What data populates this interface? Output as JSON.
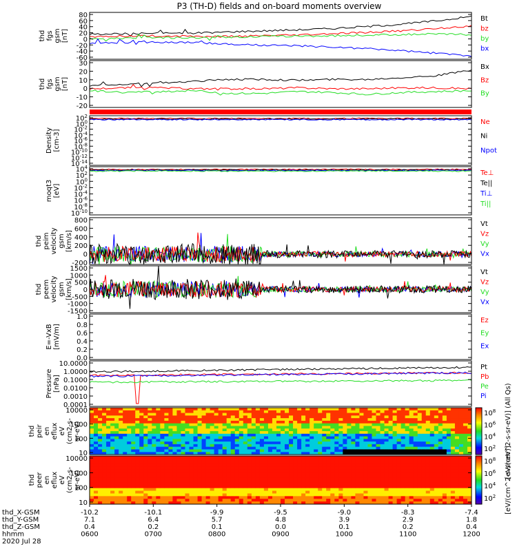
{
  "title": "P3 (TH-D) fields and on-board moments overview",
  "colors": {
    "black": "#000000",
    "red": "#ff0000",
    "green": "#22dd22",
    "blue": "#0000ff"
  },
  "chart_data": [
    {
      "type": "line",
      "ylabel": [
        "thd",
        "fgs",
        "gsm",
        "[nT]"
      ],
      "yticks": [
        "80",
        "60",
        "40",
        "20",
        "0",
        "-20",
        "-40",
        "-60"
      ],
      "ylim": [
        -60,
        80
      ],
      "legend": [
        {
          "label": "Bt",
          "color": "#000000"
        },
        {
          "label": "bz",
          "color": "#ff0000"
        },
        {
          "label": "by",
          "color": "#22dd22"
        },
        {
          "label": "bx",
          "color": "#0000ff"
        }
      ],
      "series": [
        {
          "name": "Bt",
          "color": "#000000",
          "values": [
            15,
            16,
            18,
            18,
            22,
            25,
            28,
            32,
            38,
            45,
            55,
            68
          ]
        },
        {
          "name": "bz",
          "color": "#ff0000",
          "values": [
            8,
            9,
            10,
            8,
            8,
            10,
            12,
            16,
            20,
            25,
            32,
            40
          ]
        },
        {
          "name": "by",
          "color": "#22dd22",
          "values": [
            2,
            3,
            4,
            5,
            6,
            8,
            9,
            10,
            12,
            14,
            15,
            14
          ]
        },
        {
          "name": "bx",
          "color": "#0000ff",
          "values": [
            -12,
            -10,
            -9,
            -10,
            -15,
            -18,
            -20,
            -24,
            -28,
            -35,
            -42,
            -50
          ]
        }
      ]
    },
    {
      "type": "line",
      "ylabel": [
        "thd",
        "fgs",
        "gsm",
        "[nT]"
      ],
      "yticks": [
        "30",
        "20",
        "10",
        "0",
        "-10",
        "-20"
      ],
      "ylim": [
        -20,
        30
      ],
      "legend": [
        {
          "label": "Bx",
          "color": "#000000"
        },
        {
          "label": "Bz",
          "color": "#ff0000"
        },
        {
          "label": "By",
          "color": "#22dd22"
        }
      ],
      "series": [
        {
          "name": "Bx",
          "color": "#000000",
          "values": [
            4,
            5,
            6,
            8,
            10,
            10,
            9,
            10,
            10,
            12,
            14,
            20
          ]
        },
        {
          "name": "Bz",
          "color": "#ff0000",
          "values": [
            0,
            1,
            1,
            0,
            0,
            0,
            1,
            0,
            0,
            1,
            1,
            0
          ]
        },
        {
          "name": "By",
          "color": "#22dd22",
          "values": [
            -2,
            -4,
            -3,
            -2,
            -5,
            -5,
            -3,
            -4,
            -6,
            -4,
            -3,
            -2
          ]
        }
      ]
    },
    {
      "type": "line",
      "ylabel": [
        "Density",
        "[cm-3]"
      ],
      "yticks": [
        "10^2",
        "10^0",
        "10^-2",
        "10^-4",
        "10^-6",
        "10^-8",
        "10^-10",
        "10^-12",
        "10^-14"
      ],
      "scale": "log",
      "legend": [
        {
          "label": "Ne",
          "color": "#ff0000"
        },
        {
          "label": "Ni",
          "color": "#000000"
        },
        {
          "label": "Npot",
          "color": "#0000ff"
        }
      ]
    },
    {
      "type": "line",
      "ylabel": [
        "moqt3",
        "[eV]"
      ],
      "yticks": [
        "10^4",
        "10^2",
        "10^0",
        "10^-2",
        "10^-4",
        "10^-6",
        "10^-8",
        "10^-10"
      ],
      "scale": "log",
      "legend": [
        {
          "label": "Te⊥",
          "color": "#ff0000"
        },
        {
          "label": "Te||",
          "color": "#000000"
        },
        {
          "label": "Ti⊥",
          "color": "#0000ff"
        },
        {
          "label": "Ti||",
          "color": "#22dd22"
        }
      ]
    },
    {
      "type": "line",
      "ylabel": [
        "thd",
        "peim",
        "velocity",
        "gsm",
        "[km/s]"
      ],
      "yticks": [
        "800",
        "600",
        "400",
        "200",
        "0",
        "-200"
      ],
      "ylim": [
        -200,
        800
      ],
      "legend": [
        {
          "label": "Vt",
          "color": "#000000"
        },
        {
          "label": "Vz",
          "color": "#ff0000"
        },
        {
          "label": "Vy",
          "color": "#22dd22"
        },
        {
          "label": "Vx",
          "color": "#0000ff"
        }
      ]
    },
    {
      "type": "line",
      "ylabel": [
        "thd",
        "peem",
        "velocity",
        "gsm",
        "[km/s]"
      ],
      "yticks": [
        "1500",
        "1000",
        "500",
        "0",
        "-500",
        "-1000",
        "-1500"
      ],
      "ylim": [
        -1500,
        1500
      ],
      "legend": [
        {
          "label": "Vt",
          "color": "#000000"
        },
        {
          "label": "Vz",
          "color": "#ff0000"
        },
        {
          "label": "Vy",
          "color": "#22dd22"
        },
        {
          "label": "Vx",
          "color": "#0000ff"
        }
      ]
    },
    {
      "type": "line",
      "ylabel": [
        "E=-VxB",
        "[mV/m]"
      ],
      "yticks": [
        "1.0",
        "0.8",
        "0.6",
        "0.4",
        "0.2",
        "0.0"
      ],
      "ylim": [
        0,
        1
      ],
      "legend": [
        {
          "label": "Ez",
          "color": "#ff0000"
        },
        {
          "label": "Ey",
          "color": "#22dd22"
        },
        {
          "label": "Ex",
          "color": "#0000ff"
        }
      ]
    },
    {
      "type": "line",
      "ylabel": [
        "Pressure",
        "[nPa]"
      ],
      "yticks": [
        "10.0000",
        "1.0000",
        "0.1000",
        "0.0100",
        "0.0010",
        "0.0001"
      ],
      "scale": "log",
      "legend": [
        {
          "label": "Pt",
          "color": "#000000"
        },
        {
          "label": "Pb",
          "color": "#ff0000"
        },
        {
          "label": "Pe",
          "color": "#22dd22"
        },
        {
          "label": "Pi",
          "color": "#0000ff"
        }
      ]
    },
    {
      "type": "heatmap",
      "ylabel": [
        "thd",
        "peir",
        "en",
        "eflux",
        "eV",
        "(cm2-s-",
        "sr-eV)"
      ],
      "yticks": [
        "10000",
        "1000",
        "100",
        "10"
      ],
      "colorbar": {
        "ticks": [
          "10^8",
          "10^6",
          "10^4",
          "10^2"
        ],
        "label": "[eV/(cm^2-s-sr-eV)] (All Qs)"
      }
    },
    {
      "type": "heatmap",
      "ylabel": [
        "thd",
        "peer",
        "en",
        "eflux",
        "eV",
        "(cm2-s-",
        "sr-eV)"
      ],
      "yticks": [
        "10000",
        "1000",
        "100",
        "10"
      ],
      "colorbar": {
        "ticks": [
          "10^8",
          "10^6",
          "10^4",
          "10^2"
        ],
        "label": "[eV/(cm^2-s-sr-eV)]"
      }
    }
  ],
  "xaxis": {
    "rows": [
      {
        "name": "thd_X-GSM",
        "values": [
          "-10.2",
          "-10.1",
          "-9.9",
          "-9.5",
          "-9.0",
          "-8.3",
          "-7.4"
        ]
      },
      {
        "name": "thd_Y-GSM",
        "values": [
          "7.1",
          "6.4",
          "5.7",
          "4.8",
          "3.9",
          "2.9",
          "1.8"
        ]
      },
      {
        "name": "thd_Z-GSM",
        "values": [
          "0.4",
          "0.2",
          "0.1",
          "0.0",
          "0.1",
          "0.2",
          "0.4"
        ]
      },
      {
        "name": "hhmm",
        "values": [
          "0600",
          "0700",
          "0800",
          "0900",
          "1000",
          "1100",
          "1200"
        ]
      }
    ],
    "date": "2020 Jul 28"
  }
}
